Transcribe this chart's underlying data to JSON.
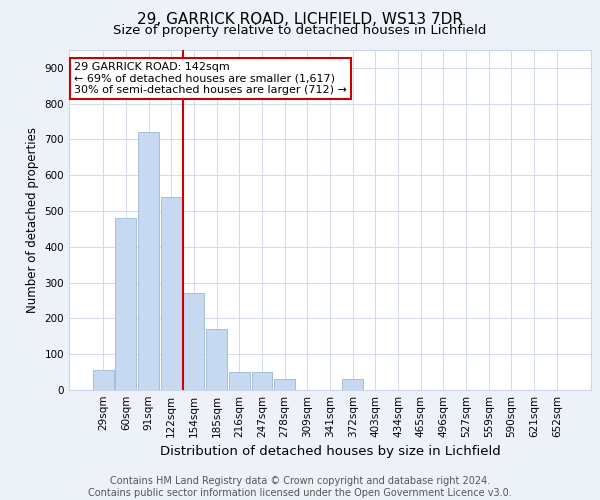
{
  "title1": "29, GARRICK ROAD, LICHFIELD, WS13 7DR",
  "title2": "Size of property relative to detached houses in Lichfield",
  "xlabel": "Distribution of detached houses by size in Lichfield",
  "ylabel": "Number of detached properties",
  "footnote": "Contains HM Land Registry data © Crown copyright and database right 2024.\nContains public sector information licensed under the Open Government Licence v3.0.",
  "bar_labels": [
    "29sqm",
    "60sqm",
    "91sqm",
    "122sqm",
    "154sqm",
    "185sqm",
    "216sqm",
    "247sqm",
    "278sqm",
    "309sqm",
    "341sqm",
    "372sqm",
    "403sqm",
    "434sqm",
    "465sqm",
    "496sqm",
    "527sqm",
    "559sqm",
    "590sqm",
    "621sqm",
    "652sqm"
  ],
  "bar_values": [
    55,
    480,
    720,
    540,
    270,
    170,
    50,
    50,
    30,
    0,
    0,
    30,
    0,
    0,
    0,
    0,
    0,
    0,
    0,
    0,
    0
  ],
  "bar_color": "#c6d9f0",
  "bar_edge_color": "#9ab8d8",
  "red_line_x": 3.5,
  "red_line_color": "#cc0000",
  "annotation_text": "29 GARRICK ROAD: 142sqm\n← 69% of detached houses are smaller (1,617)\n30% of semi-detached houses are larger (712) →",
  "annotation_box_color": "#ffffff",
  "annotation_box_edge_color": "#cc0000",
  "ylim": [
    0,
    950
  ],
  "yticks": [
    0,
    100,
    200,
    300,
    400,
    500,
    600,
    700,
    800,
    900
  ],
  "bg_color": "#edf2f9",
  "plot_bg_color": "#ffffff",
  "grid_color": "#ccd6e8",
  "title1_fontsize": 11,
  "title2_fontsize": 9.5,
  "xlabel_fontsize": 9.5,
  "ylabel_fontsize": 8.5,
  "tick_fontsize": 7.5,
  "footnote_fontsize": 7
}
